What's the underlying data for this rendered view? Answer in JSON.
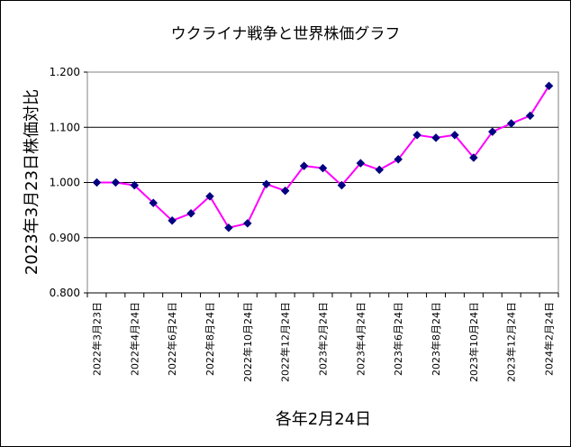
{
  "chart_data": {
    "type": "line",
    "title": "ウクライナ戦争と世界株価グラフ",
    "xlabel": "各年2月24日",
    "ylabel": "2023年3月23日株価対比",
    "ylim": [
      0.8,
      1.2
    ],
    "yticks": [
      "0.800",
      "0.900",
      "1.000",
      "1.100",
      "1.200"
    ],
    "grid": true,
    "legend": "none",
    "line_color": "#ff00ff",
    "marker_color": "#000080",
    "categories": [
      "2022年3月23日",
      "",
      "2022年4月24日",
      "",
      "2022年6月24日",
      "",
      "2022年8月24日",
      "",
      "2022年10月24日",
      "",
      "2022年12月24日",
      "",
      "2023年2月24日",
      "",
      "2023年4月24日",
      "",
      "2023年6月24日",
      "",
      "2023年8月24日",
      "",
      "2023年10月24日",
      "",
      "2023年12月24日",
      "",
      "2024年2月24日"
    ],
    "series": [
      {
        "values": [
          1.0,
          1.0,
          0.995,
          0.963,
          0.931,
          0.944,
          0.975,
          0.918,
          0.926,
          0.997,
          0.985,
          1.03,
          1.026,
          0.995,
          1.035,
          1.023,
          1.042,
          1.086,
          1.081,
          1.086,
          1.045,
          1.092,
          1.107,
          1.121,
          1.175
        ]
      }
    ]
  }
}
